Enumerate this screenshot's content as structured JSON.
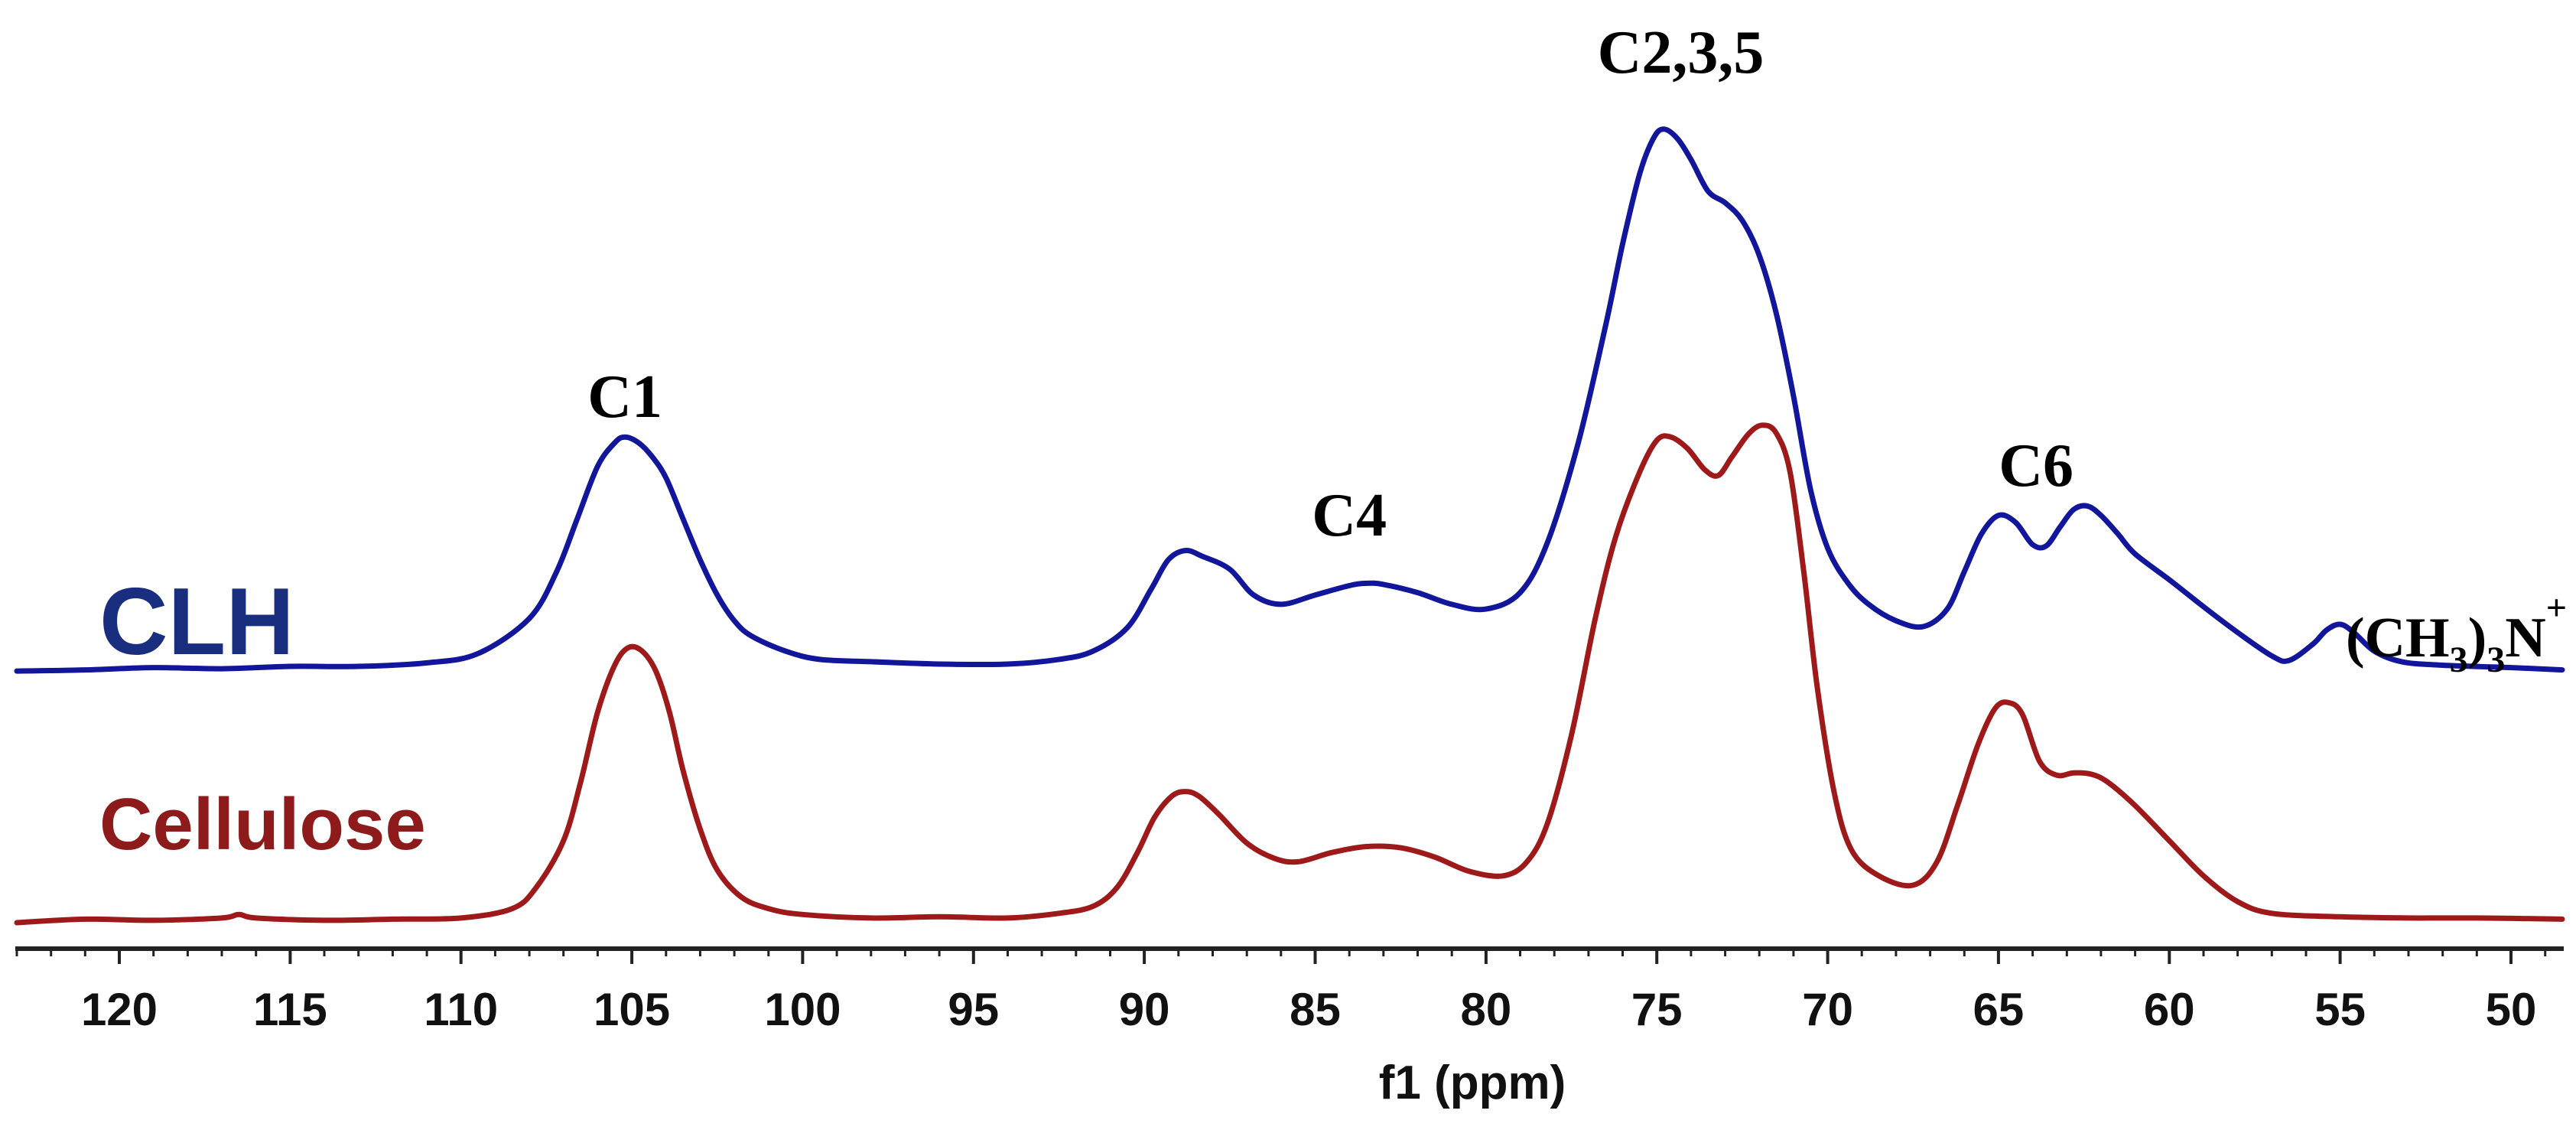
{
  "chart_data": {
    "type": "line",
    "title": "",
    "xlabel": "f1 (ppm)",
    "ylabel": "",
    "x_reversed": true,
    "xlim": [
      123,
      48.5
    ],
    "ylim": [
      0,
      1
    ],
    "grid": false,
    "x_ticks": [
      120,
      115,
      110,
      105,
      100,
      95,
      90,
      85,
      80,
      75,
      70,
      65,
      60,
      55,
      50
    ],
    "series": [
      {
        "name": "CLH",
        "color": "#12169a",
        "label_color": "#1a2e80",
        "points": [
          [
            123,
            0.045
          ],
          [
            121,
            0.046
          ],
          [
            119,
            0.048
          ],
          [
            117,
            0.047
          ],
          [
            115,
            0.049
          ],
          [
            113,
            0.049
          ],
          [
            111,
            0.052
          ],
          [
            109.5,
            0.06
          ],
          [
            108,
            0.09
          ],
          [
            107.2,
            0.13
          ],
          [
            106.6,
            0.175
          ],
          [
            106,
            0.22
          ],
          [
            105.5,
            0.24
          ],
          [
            105.2,
            0.245
          ],
          [
            104.8,
            0.24
          ],
          [
            104.4,
            0.228
          ],
          [
            104,
            0.21
          ],
          [
            103.5,
            0.175
          ],
          [
            103,
            0.14
          ],
          [
            102.5,
            0.11
          ],
          [
            102,
            0.088
          ],
          [
            101.5,
            0.075
          ],
          [
            100.5,
            0.062
          ],
          [
            99.5,
            0.055
          ],
          [
            98,
            0.053
          ],
          [
            96,
            0.051
          ],
          [
            94,
            0.051
          ],
          [
            92.5,
            0.055
          ],
          [
            91.5,
            0.062
          ],
          [
            90.5,
            0.082
          ],
          [
            89.8,
            0.115
          ],
          [
            89.3,
            0.14
          ],
          [
            88.8,
            0.148
          ],
          [
            88.3,
            0.143
          ],
          [
            87.5,
            0.132
          ],
          [
            86.8,
            0.11
          ],
          [
            86,
            0.102
          ],
          [
            85,
            0.11
          ],
          [
            84,
            0.118
          ],
          [
            83.5,
            0.12
          ],
          [
            83,
            0.119
          ],
          [
            82,
            0.112
          ],
          [
            81,
            0.102
          ],
          [
            80,
            0.098
          ],
          [
            79,
            0.112
          ],
          [
            78.2,
            0.155
          ],
          [
            77.3,
            0.24
          ],
          [
            76.5,
            0.34
          ],
          [
            76,
            0.41
          ],
          [
            75.5,
            0.47
          ],
          [
            75.1,
            0.5
          ],
          [
            74.8,
            0.508
          ],
          [
            74.4,
            0.5
          ],
          [
            74,
            0.482
          ],
          [
            73.5,
            0.455
          ],
          [
            73,
            0.445
          ],
          [
            72.5,
            0.43
          ],
          [
            72,
            0.4
          ],
          [
            71.5,
            0.35
          ],
          [
            71,
            0.28
          ],
          [
            70.5,
            0.2
          ],
          [
            70,
            0.15
          ],
          [
            69.4,
            0.12
          ],
          [
            68.8,
            0.102
          ],
          [
            68,
            0.088
          ],
          [
            67.2,
            0.083
          ],
          [
            66.5,
            0.098
          ],
          [
            66,
            0.13
          ],
          [
            65.5,
            0.162
          ],
          [
            65,
            0.178
          ],
          [
            64.5,
            0.172
          ],
          [
            64,
            0.153
          ],
          [
            63.6,
            0.152
          ],
          [
            63.2,
            0.168
          ],
          [
            62.8,
            0.183
          ],
          [
            62.4,
            0.186
          ],
          [
            62,
            0.178
          ],
          [
            61.5,
            0.162
          ],
          [
            61,
            0.145
          ],
          [
            60,
            0.123
          ],
          [
            59,
            0.1
          ],
          [
            58,
            0.078
          ],
          [
            57,
            0.058
          ],
          [
            56.5,
            0.054
          ],
          [
            55.8,
            0.068
          ],
          [
            55.4,
            0.08
          ],
          [
            55,
            0.085
          ],
          [
            54.6,
            0.078
          ],
          [
            54,
            0.062
          ],
          [
            53.2,
            0.053
          ],
          [
            52,
            0.05
          ],
          [
            50,
            0.048
          ],
          [
            48.5,
            0.046
          ]
        ]
      },
      {
        "name": "Cellulose",
        "color": "#9e1a1a",
        "label_color": "#8e1b1b",
        "points": [
          [
            123,
            0.0
          ],
          [
            121,
            0.003
          ],
          [
            119,
            0.002
          ],
          [
            117,
            0.004
          ],
          [
            116.5,
            0.007
          ],
          [
            116,
            0.004
          ],
          [
            114,
            0.002
          ],
          [
            112,
            0.003
          ],
          [
            110,
            0.004
          ],
          [
            108.5,
            0.012
          ],
          [
            107.8,
            0.03
          ],
          [
            107,
            0.07
          ],
          [
            106.5,
            0.12
          ],
          [
            106,
            0.18
          ],
          [
            105.5,
            0.22
          ],
          [
            105.1,
            0.235
          ],
          [
            104.7,
            0.232
          ],
          [
            104.3,
            0.215
          ],
          [
            103.9,
            0.18
          ],
          [
            103.5,
            0.13
          ],
          [
            103,
            0.08
          ],
          [
            102.5,
            0.045
          ],
          [
            101.8,
            0.022
          ],
          [
            101,
            0.012
          ],
          [
            100,
            0.007
          ],
          [
            98,
            0.004
          ],
          [
            96,
            0.005
          ],
          [
            94,
            0.004
          ],
          [
            92.5,
            0.008
          ],
          [
            91.5,
            0.014
          ],
          [
            90.8,
            0.03
          ],
          [
            90.2,
            0.06
          ],
          [
            89.7,
            0.09
          ],
          [
            89.2,
            0.108
          ],
          [
            88.8,
            0.112
          ],
          [
            88.4,
            0.108
          ],
          [
            87.8,
            0.092
          ],
          [
            87,
            0.068
          ],
          [
            86.2,
            0.055
          ],
          [
            85.5,
            0.052
          ],
          [
            84.5,
            0.06
          ],
          [
            83.5,
            0.065
          ],
          [
            82.5,
            0.064
          ],
          [
            81.5,
            0.056
          ],
          [
            80.5,
            0.044
          ],
          [
            79.5,
            0.04
          ],
          [
            78.8,
            0.052
          ],
          [
            78.2,
            0.085
          ],
          [
            77.5,
            0.16
          ],
          [
            76.8,
            0.26
          ],
          [
            76.2,
            0.33
          ],
          [
            75.5,
            0.385
          ],
          [
            75,
            0.412
          ],
          [
            74.6,
            0.415
          ],
          [
            74.1,
            0.405
          ],
          [
            73.6,
            0.387
          ],
          [
            73.2,
            0.382
          ],
          [
            72.8,
            0.398
          ],
          [
            72.3,
            0.418
          ],
          [
            71.9,
            0.425
          ],
          [
            71.5,
            0.418
          ],
          [
            71.1,
            0.385
          ],
          [
            70.7,
            0.3
          ],
          [
            70.3,
            0.2
          ],
          [
            69.8,
            0.11
          ],
          [
            69.3,
            0.062
          ],
          [
            68.5,
            0.04
          ],
          [
            67.5,
            0.032
          ],
          [
            66.8,
            0.052
          ],
          [
            66.2,
            0.1
          ],
          [
            65.6,
            0.152
          ],
          [
            65.1,
            0.183
          ],
          [
            64.7,
            0.188
          ],
          [
            64.3,
            0.178
          ],
          [
            63.8,
            0.138
          ],
          [
            63.3,
            0.126
          ],
          [
            62.8,
            0.128
          ],
          [
            62.3,
            0.127
          ],
          [
            61.8,
            0.12
          ],
          [
            61,
            0.1
          ],
          [
            60,
            0.07
          ],
          [
            59,
            0.04
          ],
          [
            58,
            0.018
          ],
          [
            57,
            0.008
          ],
          [
            55,
            0.005
          ],
          [
            53,
            0.004
          ],
          [
            51,
            0.004
          ],
          [
            48.5,
            0.003
          ]
        ]
      }
    ],
    "annotations": [
      {
        "text": "C1",
        "x": 105.2
      },
      {
        "text": "C4",
        "x": 84.0
      },
      {
        "text": "C2,3,5",
        "x": 74.3
      },
      {
        "text": "C6",
        "x": 63.9
      },
      {
        "formula": {
          "open": "(CH",
          "sub1": "3",
          "close": ")",
          "sub2": "3",
          "elem": "N",
          "sup": "+"
        },
        "x": 51.6
      }
    ]
  }
}
